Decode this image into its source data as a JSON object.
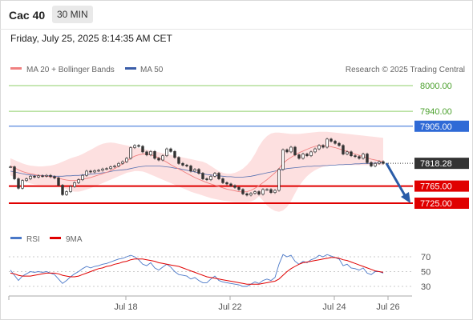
{
  "header": {
    "title": "Cac 40",
    "timeframe": "30 MIN",
    "date": "Friday, July 25, 2025 8:14:35 AM CET"
  },
  "legend": {
    "ma20": "MA 20 + Bollinger Bands",
    "ma50": "MA 50",
    "credit": "Research © 2025 Trading Central"
  },
  "rsi_legend": {
    "rsi": "RSI",
    "ma": "9MA"
  },
  "colors": {
    "ma20": "#f08080",
    "ma50": "#3a5da8",
    "resistance_green": "#8fcf6a",
    "level_blue": "#2f6ad6",
    "support_red": "#e00000",
    "band_fill": "#fde0e0",
    "candle": "#333333",
    "arrow": "#2a5ca8"
  },
  "chart_data": [
    {
      "type": "candlestick",
      "title": "Cac 40",
      "ylim": [
        7715,
        8010
      ],
      "x_ticks": [
        "Jul 18",
        "Jul 22",
        "Jul 24",
        "Jul 26"
      ],
      "levels": [
        {
          "value": 8000.0,
          "label": "8000.00",
          "style": "resistance"
        },
        {
          "value": 7940.0,
          "label": "7940.00",
          "style": "resistance"
        },
        {
          "value": 7905.0,
          "label": "7905.00",
          "style": "key"
        },
        {
          "value": 7765.0,
          "label": "7765.00",
          "style": "support"
        },
        {
          "value": 7725.0,
          "label": "7725.00",
          "style": "support"
        }
      ],
      "last_price": 7818.28,
      "last_price_label": "7818.28",
      "close": [
        7810,
        7782,
        7760,
        7778,
        7782,
        7788,
        7786,
        7789,
        7788,
        7790,
        7787,
        7784,
        7767,
        7745,
        7752,
        7764,
        7773,
        7780,
        7790,
        7800,
        7798,
        7801,
        7802,
        7805,
        7806,
        7810,
        7812,
        7818,
        7822,
        7830,
        7855,
        7860,
        7858,
        7845,
        7838,
        7846,
        7830,
        7826,
        7836,
        7852,
        7846,
        7832,
        7818,
        7814,
        7812,
        7800,
        7804,
        7795,
        7782,
        7780,
        7788,
        7795,
        7782,
        7773,
        7770,
        7766,
        7762,
        7757,
        7747,
        7744,
        7748,
        7752,
        7746,
        7757,
        7757,
        7750,
        7755,
        7804,
        7850,
        7845,
        7856,
        7838,
        7830,
        7840,
        7836,
        7845,
        7852,
        7860,
        7856,
        7875,
        7870,
        7865,
        7860,
        7840,
        7845,
        7836,
        7834,
        7830,
        7840,
        7820,
        7812,
        7818,
        7822,
        7818
      ],
      "ma20": [
        7812,
        7808,
        7803,
        7799,
        7796,
        7794,
        7792,
        7790,
        7789,
        7788,
        7787,
        7786,
        7784,
        7781,
        7779,
        7778,
        7778,
        7779,
        7781,
        7783,
        7785,
        7788,
        7791,
        7794,
        7797,
        7801,
        7806,
        7811,
        7817,
        7823,
        7830,
        7835,
        7838,
        7840,
        7840,
        7838,
        7835,
        7831,
        7826,
        7821,
        7815,
        7810,
        7805,
        7800,
        7795,
        7790,
        7785,
        7781,
        7777,
        7773,
        7770,
        7767,
        7764,
        7761,
        7758,
        7756,
        7754,
        7752,
        7751,
        7752,
        7755,
        7760,
        7766,
        7773,
        7780,
        7788,
        7796,
        7806,
        7818,
        7826,
        7832,
        7838,
        7843,
        7847,
        7851,
        7855,
        7858,
        7860,
        7860,
        7859,
        7857,
        7855,
        7852,
        7849,
        7846,
        7843,
        7840,
        7837,
        7834,
        7831,
        7828,
        7826,
        7824,
        7822
      ],
      "ma50": [
        7800,
        7798,
        7796,
        7794,
        7792,
        7791,
        7790,
        7790,
        7790,
        7789,
        7789,
        7788,
        7788,
        7788,
        7789,
        7789,
        7790,
        7790,
        7791,
        7792,
        7793,
        7794,
        7795,
        7796,
        7797,
        7799,
        7801,
        7802,
        7803,
        7804,
        7806,
        7808,
        7810,
        7811,
        7812,
        7812,
        7812,
        7812,
        7811,
        7810,
        7809,
        7807,
        7806,
        7804,
        7802,
        7800,
        7798,
        7796,
        7794,
        7792,
        7791,
        7790,
        7789,
        7788,
        7787,
        7787,
        7786,
        7786,
        7786,
        7787,
        7788,
        7790,
        7792,
        7794,
        7796,
        7798,
        7800,
        7802,
        7804,
        7806,
        7807,
        7808,
        7809,
        7810,
        7811,
        7811,
        7812,
        7812,
        7813,
        7813,
        7814,
        7814,
        7815,
        7815,
        7816,
        7816,
        7817,
        7817,
        7818,
        7818,
        7818,
        7819,
        7819,
        7820
      ],
      "band_upper": [
        7830,
        7826,
        7822,
        7818,
        7815,
        7813,
        7812,
        7811,
        7811,
        7812,
        7813,
        7815,
        7818,
        7822,
        7826,
        7830,
        7833,
        7836,
        7840,
        7845,
        7850,
        7855,
        7860,
        7864,
        7866,
        7867,
        7866,
        7864,
        7862,
        7860,
        7858,
        7856,
        7854,
        7852,
        7850,
        7848,
        7846,
        7844,
        7842,
        7840,
        7838,
        7836,
        7834,
        7832,
        7830,
        7828,
        7826,
        7824,
        7822,
        7818,
        7812,
        7806,
        7800,
        7796,
        7794,
        7794,
        7796,
        7800,
        7806,
        7814,
        7825,
        7840,
        7858,
        7872,
        7882,
        7888,
        7890,
        7890,
        7889,
        7888,
        7887,
        7887,
        7887,
        7888,
        7889,
        7890,
        7891,
        7892,
        7892,
        7892,
        7891,
        7890,
        7889,
        7888,
        7887,
        7886,
        7885,
        7884,
        7883,
        7882,
        7881,
        7880,
        7879,
        7878
      ],
      "band_lower": [
        7790,
        7786,
        7782,
        7778,
        7774,
        7771,
        7769,
        7768,
        7768,
        7768,
        7768,
        7768,
        7766,
        7762,
        7758,
        7754,
        7752,
        7752,
        7754,
        7757,
        7760,
        7764,
        7768,
        7772,
        7776,
        7780,
        7784,
        7788,
        7792,
        7796,
        7798,
        7800,
        7800,
        7799,
        7796,
        7792,
        7788,
        7784,
        7780,
        7776,
        7772,
        7768,
        7764,
        7760,
        7756,
        7752,
        7749,
        7746,
        7743,
        7740,
        7737,
        7735,
        7733,
        7731,
        7730,
        7729,
        7728,
        7728,
        7728,
        7728,
        7729,
        7733,
        7741,
        7731,
        7720,
        7712,
        7707,
        7705,
        7708,
        7716,
        7730,
        7748,
        7765,
        7778,
        7788,
        7796,
        7802,
        7807,
        7810,
        7812,
        7813,
        7814,
        7814,
        7814,
        7814,
        7814,
        7814,
        7814,
        7814,
        7814,
        7814,
        7814,
        7814,
        7814
      ],
      "projection": {
        "from": 7818.28,
        "to": 7725.0
      }
    },
    {
      "type": "line",
      "title": "RSI",
      "ylim": [
        20,
        80
      ],
      "y_ticks": [
        70,
        50,
        30
      ],
      "series": [
        {
          "name": "RSI",
          "values": [
            52,
            45,
            38,
            44,
            47,
            50,
            49,
            50,
            49,
            50,
            48,
            46,
            40,
            34,
            38,
            43,
            47,
            50,
            54,
            57,
            55,
            57,
            58,
            60,
            61,
            63,
            65,
            67,
            68,
            70,
            72,
            70,
            66,
            60,
            58,
            62,
            55,
            52,
            56,
            60,
            56,
            50,
            46,
            45,
            44,
            40,
            42,
            38,
            35,
            35,
            40,
            44,
            38,
            36,
            35,
            34,
            33,
            32,
            30,
            30,
            33,
            36,
            34,
            38,
            40,
            38,
            42,
            60,
            73,
            70,
            72,
            64,
            60,
            64,
            62,
            66,
            68,
            72,
            70,
            73,
            71,
            69,
            67,
            58,
            60,
            55,
            54,
            52,
            55,
            48,
            46,
            50,
            50,
            48
          ]
        },
        {
          "name": "9MA",
          "values": [
            48,
            47,
            45,
            44,
            44,
            44,
            45,
            46,
            47,
            48,
            48,
            48,
            47,
            45,
            44,
            43,
            43,
            44,
            46,
            48,
            50,
            52,
            54,
            55,
            57,
            58,
            60,
            61,
            63,
            64,
            66,
            67,
            67,
            67,
            66,
            65,
            64,
            62,
            61,
            60,
            59,
            58,
            57,
            55,
            53,
            51,
            49,
            47,
            45,
            43,
            42,
            41,
            40,
            39,
            38,
            37,
            36,
            35,
            34,
            33,
            33,
            33,
            33,
            34,
            35,
            36,
            37,
            40,
            45,
            50,
            54,
            57,
            60,
            62,
            63,
            64,
            65,
            66,
            67,
            68,
            69,
            69,
            68,
            66,
            65,
            63,
            61,
            59,
            57,
            55,
            53,
            51,
            50,
            49
          ]
        }
      ]
    }
  ]
}
